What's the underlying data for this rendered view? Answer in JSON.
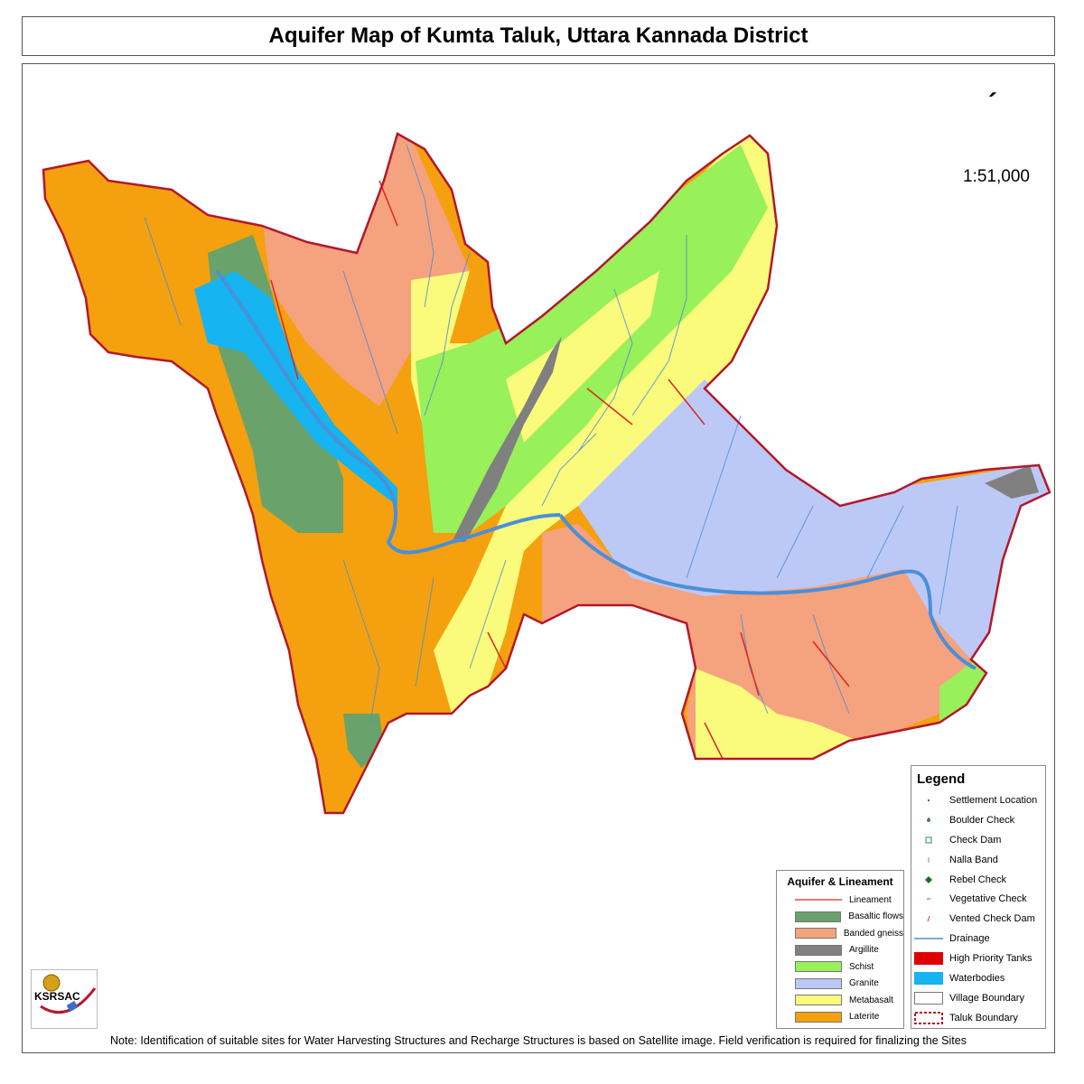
{
  "title": "Aquifer Map of Kumta Taluk, Uttara Kannada District",
  "scale": "1:51,000",
  "north_arrow": "´",
  "colors": {
    "lineament": "#e0261b",
    "basaltic_flows": "#6aa26b",
    "banded_gneiss": "#f5a27f",
    "argillite": "#808080",
    "schist": "#98f05a",
    "granite": "#bcc9f7",
    "metabasalt": "#fbfb7b",
    "laterite": "#f5a00e",
    "drainage": "#4a8fd9",
    "waterbodies": "#16b4f0",
    "taluk_boundary": "#b2182b",
    "high_priority_tanks": "#e00000"
  },
  "legend": {
    "title": "Legend",
    "items": [
      {
        "label": "Settlement Location",
        "icon": "settlement-dot-icon"
      },
      {
        "label": "Boulder Check",
        "icon": "boulder-check-icon"
      },
      {
        "label": "Check Dam",
        "icon": "check-dam-icon"
      },
      {
        "label": "Nalla Band",
        "icon": "nalla-band-icon"
      },
      {
        "label": "Rebel Check",
        "icon": "rebel-check-icon"
      },
      {
        "label": "Vegetative Check",
        "icon": "vegetative-check-icon"
      },
      {
        "label": "Vented Check Dam",
        "icon": "vented-check-dam-icon"
      },
      {
        "label": "Drainage",
        "icon": "drainage-line-icon"
      },
      {
        "label": "High Priority Tanks",
        "icon": "tank-swatch-icon"
      },
      {
        "label": "Waterbodies",
        "icon": "waterbody-swatch-icon"
      },
      {
        "label": "Village Boundary",
        "icon": "village-boundary-swatch-icon"
      },
      {
        "label": "Taluk Boundary",
        "icon": "taluk-boundary-swatch-icon"
      }
    ]
  },
  "aquifer_legend": {
    "title": "Aquifer & Lineament",
    "items": [
      {
        "label": "Lineament"
      },
      {
        "label": "Basaltic flows"
      },
      {
        "label": "Banded gneiss"
      },
      {
        "label": "Argillite"
      },
      {
        "label": "Schist"
      },
      {
        "label": "Granite"
      },
      {
        "label": "Metabasalt"
      },
      {
        "label": "Laterite"
      }
    ]
  },
  "logo": {
    "text": "KSRSAC"
  },
  "note": "Note:  Identification of suitable sites for Water Harvesting Structures and  Recharge Structures is based on Satellite image. Field verification is  required for  finalizing the Sites"
}
